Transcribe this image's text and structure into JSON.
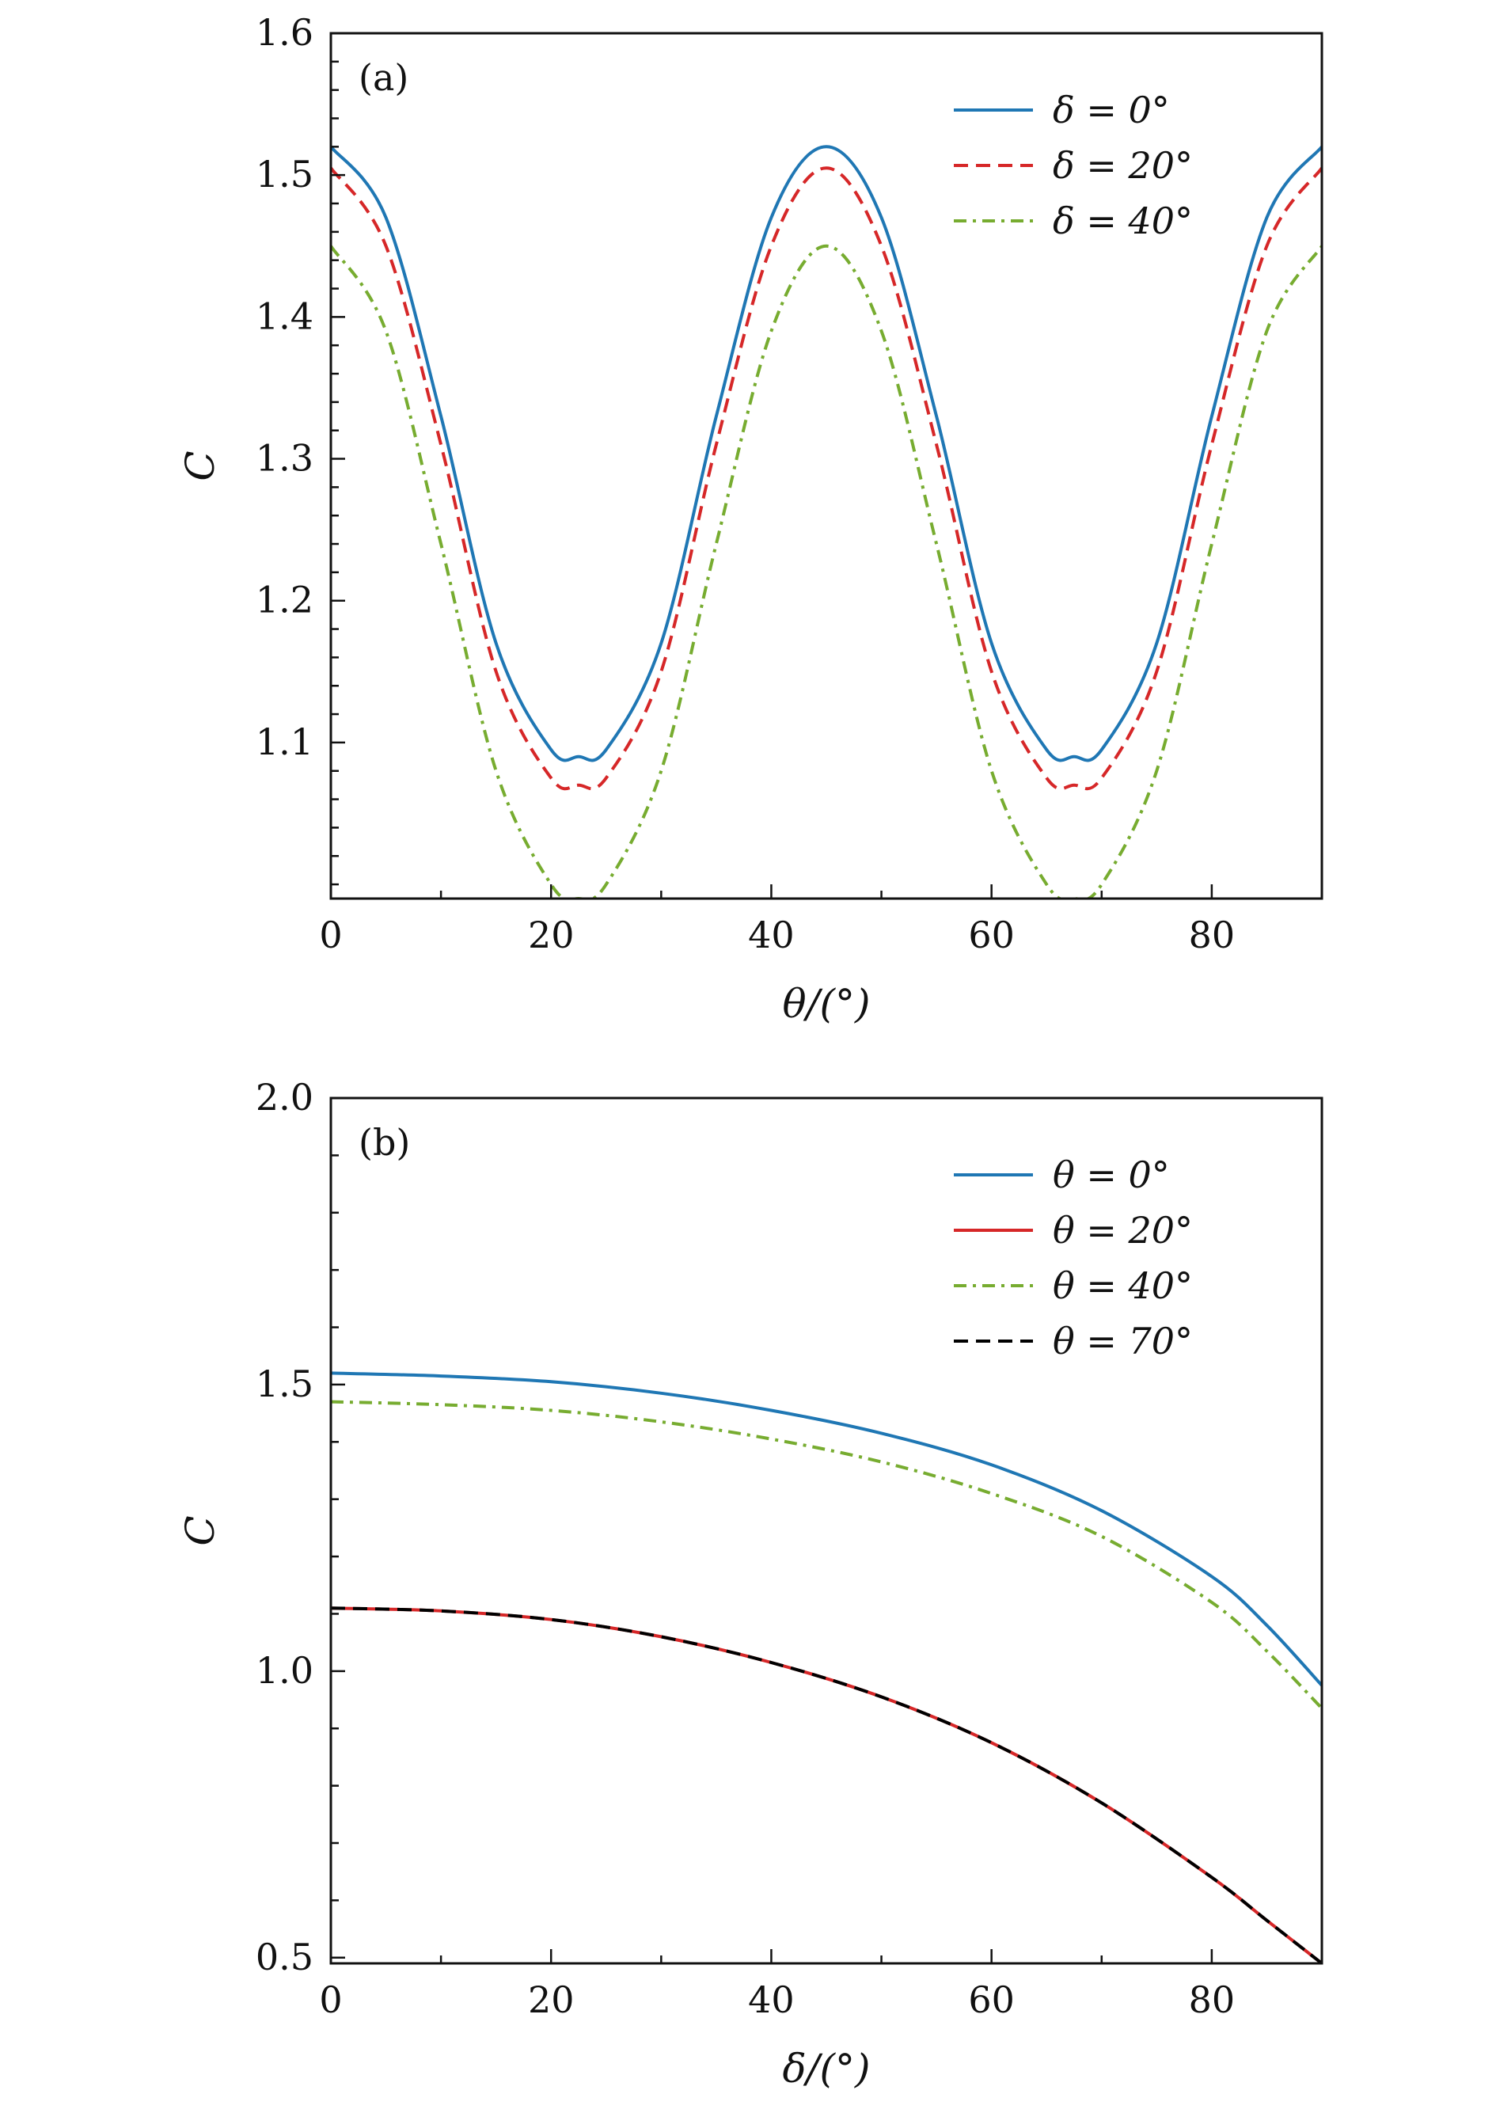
{
  "chart_data": [
    {
      "type": "line",
      "panel_label": "(a)",
      "xlabel": "θ/(°)",
      "ylabel": "C",
      "xlim": [
        0,
        90
      ],
      "ylim": [
        0.99,
        1.6
      ],
      "xticks": [
        0,
        20,
        40,
        60,
        80
      ],
      "yticks": [
        1.1,
        1.2,
        1.3,
        1.4,
        1.5,
        1.6
      ],
      "tick_labels_x": [
        "0",
        "20",
        "40",
        "60",
        "80"
      ],
      "tick_labels_y": [
        "1.1",
        "1.2",
        "1.3",
        "1.4",
        "1.5",
        "1.6"
      ],
      "legend_position": "top-right",
      "x": [
        0,
        5,
        10,
        15,
        20,
        22.5,
        25,
        30,
        35,
        40,
        45,
        50,
        55,
        60,
        65,
        67.5,
        70,
        75,
        80,
        85,
        90
      ],
      "series": [
        {
          "name": "δ = 0°",
          "color": "#1f77b4",
          "style": "solid",
          "values": [
            1.52,
            1.47,
            1.33,
            1.17,
            1.095,
            1.09,
            1.095,
            1.17,
            1.33,
            1.47,
            1.52,
            1.47,
            1.33,
            1.17,
            1.095,
            1.09,
            1.095,
            1.17,
            1.33,
            1.47,
            1.52
          ]
        },
        {
          "name": "δ = 20°",
          "color": "#d62728",
          "style": "dashed",
          "values": [
            1.505,
            1.45,
            1.31,
            1.15,
            1.075,
            1.07,
            1.075,
            1.15,
            1.31,
            1.45,
            1.505,
            1.45,
            1.31,
            1.15,
            1.075,
            1.07,
            1.075,
            1.15,
            1.31,
            1.45,
            1.505
          ]
        },
        {
          "name": "δ = 40°",
          "color": "#77ac30",
          "style": "dashdot",
          "values": [
            1.45,
            1.39,
            1.24,
            1.08,
            1.0,
            0.99,
            1.0,
            1.08,
            1.24,
            1.39,
            1.45,
            1.39,
            1.24,
            1.08,
            1.0,
            0.99,
            1.0,
            1.08,
            1.24,
            1.39,
            1.45
          ]
        }
      ]
    },
    {
      "type": "line",
      "panel_label": "(b)",
      "xlabel": "δ/(°)",
      "ylabel": "C",
      "xlim": [
        0,
        90
      ],
      "ylim": [
        0.49,
        2.0
      ],
      "xticks": [
        0,
        20,
        40,
        60,
        80
      ],
      "yticks": [
        0.5,
        1.0,
        1.5,
        2.0
      ],
      "tick_labels_x": [
        "0",
        "20",
        "40",
        "60",
        "80"
      ],
      "tick_labels_y": [
        "0.5",
        "1.0",
        "1.5",
        "2.0"
      ],
      "legend_position": "top-right",
      "x": [
        0,
        10,
        20,
        30,
        40,
        50,
        60,
        70,
        80,
        85,
        90
      ],
      "series": [
        {
          "name": "θ = 0°",
          "color": "#1f77b4",
          "style": "solid",
          "values": [
            1.52,
            1.515,
            1.505,
            1.485,
            1.455,
            1.415,
            1.36,
            1.28,
            1.165,
            1.08,
            0.975
          ]
        },
        {
          "name": "θ = 20°",
          "color": "#d62728",
          "style": "solid",
          "values": [
            1.11,
            1.105,
            1.09,
            1.06,
            1.015,
            0.955,
            0.875,
            0.77,
            0.64,
            0.565,
            0.49
          ]
        },
        {
          "name": "θ = 40°",
          "color": "#77ac30",
          "style": "dashdot",
          "values": [
            1.47,
            1.465,
            1.455,
            1.435,
            1.405,
            1.365,
            1.31,
            1.235,
            1.12,
            1.035,
            0.935
          ]
        },
        {
          "name": "θ = 70°",
          "color": "#000000",
          "style": "dashed",
          "values": [
            1.11,
            1.105,
            1.09,
            1.06,
            1.015,
            0.955,
            0.875,
            0.77,
            0.64,
            0.565,
            0.49
          ]
        }
      ]
    }
  ]
}
